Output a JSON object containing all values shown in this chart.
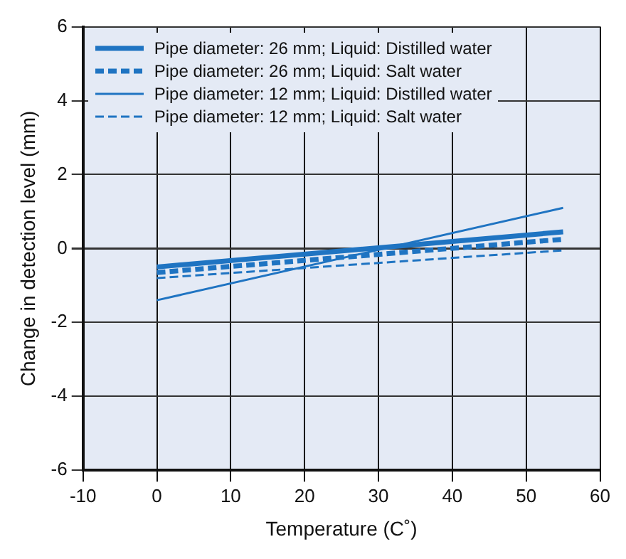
{
  "chart_data": {
    "type": "line",
    "xlabel": "Temperature (C˚)",
    "ylabel": "Change in detection level (mm)",
    "xlim": [
      -10,
      60
    ],
    "xticks": [
      -10,
      0,
      10,
      20,
      30,
      40,
      50,
      60
    ],
    "ylim": [
      -6,
      6
    ],
    "yticks": [
      -6,
      -4,
      -2,
      0,
      2,
      4,
      6
    ],
    "grid": true,
    "legend": "top",
    "marker": "none",
    "x": [
      0,
      55
    ],
    "series": [
      {
        "name": "Pipe diameter: 26 mm; Liquid: Distilled water",
        "color": "#1f74c2",
        "values": [
          -0.5,
          0.45
        ],
        "line_style": "solid"
      },
      {
        "name": "Pipe diameter: 26 mm; Liquid: Salt water",
        "color": "#1f74c2",
        "values": [
          -0.65,
          0.25
        ],
        "line_style": "dashed"
      },
      {
        "name": "Pipe diameter: 12 mm; Liquid: Distilled water",
        "color": "#1f74c2",
        "values": [
          -1.4,
          1.1
        ],
        "line_style": "solid"
      },
      {
        "name": "Pipe diameter: 12 mm; Liquid: Salt water",
        "color": "#1f74c2",
        "values": [
          -0.8,
          -0.05
        ],
        "line_style": "dashed"
      }
    ]
  }
}
